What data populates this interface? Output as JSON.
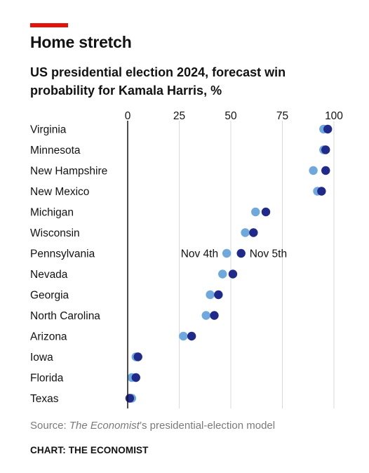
{
  "header": {
    "title": "Home stretch",
    "subtitle": "US presidential election 2024, forecast win probability for Kamala Harris, %"
  },
  "chart_data": {
    "type": "scatter",
    "title": "Home stretch",
    "subtitle": "US presidential election 2024, forecast win probability for Kamala Harris, %",
    "xlim": [
      0,
      100
    ],
    "x_ticks": [
      0,
      25,
      50,
      75,
      100
    ],
    "grid": "vertical",
    "categories": [
      "Virginia",
      "Minnesota",
      "New Hampshire",
      "New Mexico",
      "Michigan",
      "Wisconsin",
      "Pennsylvania",
      "Nevada",
      "Georgia",
      "North Carolina",
      "Arizona",
      "Iowa",
      "Florida",
      "Texas"
    ],
    "series": [
      {
        "name": "Nov 4th",
        "color": "#6fa8dc",
        "values": [
          95,
          95,
          90,
          92,
          62,
          57,
          48,
          46,
          40,
          38,
          27,
          4,
          2,
          2
        ]
      },
      {
        "name": "Nov 5th",
        "color": "#1f2a8a",
        "values": [
          97,
          96,
          96,
          94,
          67,
          61,
          55,
          51,
          44,
          42,
          31,
          5,
          4,
          1
        ]
      }
    ],
    "annotations": [
      {
        "text": "Nov 4th",
        "category": "Pennsylvania",
        "series": "Nov 4th"
      },
      {
        "text": "Nov 5th",
        "category": "Pennsylvania",
        "series": "Nov 5th"
      }
    ]
  },
  "footer": {
    "source_prefix": "Source: ",
    "source_italic": "The Economist",
    "source_suffix": "’s presidential-election model",
    "credit": "CHART: THE ECONOMIST"
  }
}
